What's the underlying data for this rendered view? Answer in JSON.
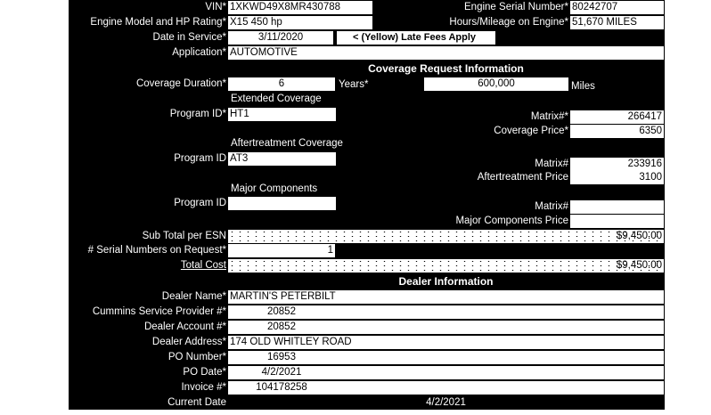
{
  "vehicle": {
    "vin_label": "VIN*",
    "vin": "1XKWD49X8MR430788",
    "engine_model_label": "Engine Model and HP Rating*",
    "engine_model": "X15  450 hp",
    "date_in_service_label": "Date in Service*",
    "date_in_service": "3/11/2020",
    "late_fees_note": "< (Yellow) Late Fees Apply",
    "application_label": "Application*",
    "application": "AUTOMOTIVE",
    "engine_serial_label": "Engine Serial Number*",
    "engine_serial": "80242707",
    "hours_label": "Hours/Mileage on Engine*",
    "hours": "51,670 MILES"
  },
  "coverage": {
    "header": "Coverage Request Information",
    "duration_label": "Coverage Duration*",
    "duration": "6",
    "years_label": "Years*",
    "miles": "600,000",
    "miles_label": "Miles",
    "extended_title": "Extended Coverage",
    "ext_program_label": "Program ID*",
    "ext_program": "HT1",
    "ext_matrix_label": "Matrix#*",
    "ext_matrix": "266417",
    "coverage_price_label": "Coverage Price*",
    "coverage_price": "6350",
    "at_title": "Aftertreatment Coverage",
    "at_program_label": "Program ID",
    "at_program": "AT3",
    "at_matrix_label": "Matrix#",
    "at_matrix": "233916",
    "at_price_label": "Aftertreatment Price",
    "at_price": "3100",
    "mc_title": "Major Components",
    "mc_program_label": "Program ID",
    "mc_program": "",
    "mc_matrix_label": "Matrix#",
    "mc_matrix": "",
    "mc_price_label": "Major Components Price",
    "mc_price": "",
    "subtotal_label": "Sub Total per ESN",
    "subtotal": "$9,450.00",
    "serials_label": "# Serial Numbers on Request*",
    "serials": "1",
    "total_label": "Total Cost",
    "total": "$9,450.00"
  },
  "dealer": {
    "header": "Dealer Information",
    "rows": [
      {
        "label": "Dealer  Name*",
        "value": "MARTIN'S PETERBILT",
        "align": "left"
      },
      {
        "label": "Cummins Service Provider #*",
        "value": "20852",
        "align": "center"
      },
      {
        "label": "Dealer Account #*",
        "value": "20852",
        "align": "center"
      },
      {
        "label": "Dealer Address*",
        "value": "174 OLD WHITLEY ROAD",
        "align": "left"
      },
      {
        "label": "PO Number*",
        "value": "16953",
        "align": "center"
      },
      {
        "label": "PO Date*",
        "value": "4/2/2021",
        "align": "center"
      },
      {
        "label": "Invoice #*",
        "value": "104178258",
        "align": "center"
      }
    ],
    "current_date_label": "Current Date",
    "current_date": "4/2/2021"
  }
}
